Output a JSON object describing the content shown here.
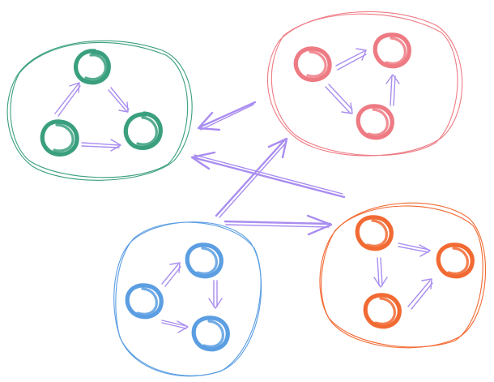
{
  "colors": {
    "green": "#3a9f7e",
    "pink": "#ee7a83",
    "blue": "#5b9ee2",
    "orange": "#f26a33",
    "arrow": "#a98df0"
  },
  "clusters": [
    {
      "name": "green-cluster",
      "color": "green"
    },
    {
      "name": "pink-cluster",
      "color": "pink"
    },
    {
      "name": "blue-cluster",
      "color": "blue"
    },
    {
      "name": "orange-cluster",
      "color": "orange"
    }
  ]
}
